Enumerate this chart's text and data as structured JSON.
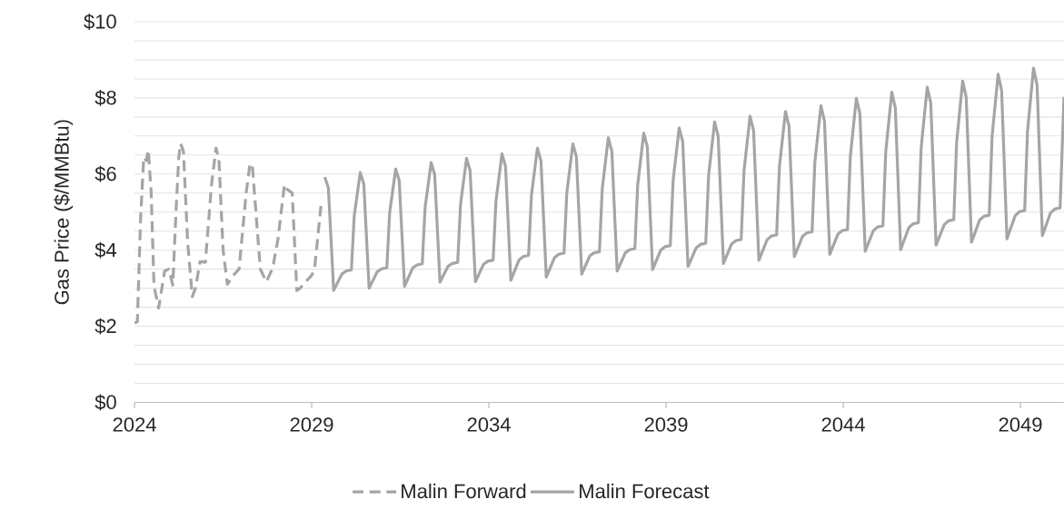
{
  "chart_data": {
    "type": "line",
    "ylabel": "Gas Price ($/MMBtu)",
    "xlim": [
      2024,
      2050.23
    ],
    "ylim": [
      0,
      10
    ],
    "xticks": [
      2024,
      2029,
      2034,
      2039,
      2044,
      2049
    ],
    "yticks": [
      {
        "value": 0,
        "label": "$0"
      },
      {
        "value": 0.5,
        "label": null
      },
      {
        "value": 1,
        "label": null
      },
      {
        "value": 1.5,
        "label": null
      },
      {
        "value": 2,
        "label": "$2"
      },
      {
        "value": 2.5,
        "label": null
      },
      {
        "value": 3,
        "label": null
      },
      {
        "value": 3.5,
        "label": null
      },
      {
        "value": 4,
        "label": "$4"
      },
      {
        "value": 4.5,
        "label": null
      },
      {
        "value": 5,
        "label": null
      },
      {
        "value": 5.5,
        "label": null
      },
      {
        "value": 6,
        "label": "$6"
      },
      {
        "value": 6.5,
        "label": null
      },
      {
        "value": 7,
        "label": null
      },
      {
        "value": 7.5,
        "label": null
      },
      {
        "value": 8,
        "label": "$8"
      },
      {
        "value": 8.5,
        "label": null
      },
      {
        "value": 9,
        "label": null
      },
      {
        "value": 9.5,
        "label": null
      },
      {
        "value": 10,
        "label": "$10"
      }
    ],
    "grid": "y",
    "legend": "bottom",
    "marker": "none",
    "series": [
      {
        "name": "Malin Forward",
        "color": "#a5a5a5",
        "line_style": "dashed",
        "x": [
          2024.0,
          2024.08,
          2024.17,
          2024.26,
          2024.33,
          2024.39,
          2024.47,
          2024.55,
          2024.68,
          2024.85,
          2024.97,
          2025.08,
          2025.17,
          2025.25,
          2025.3,
          2025.38,
          2025.5,
          2025.63,
          2025.72,
          2025.85,
          2026.0,
          2026.17,
          2026.3,
          2026.38,
          2026.5,
          2026.62,
          2026.79,
          2026.95,
          2027.15,
          2027.26,
          2027.33,
          2027.55,
          2027.72,
          2027.9,
          2028.05,
          2028.23,
          2028.3,
          2028.45,
          2028.58,
          2028.65,
          2029.0,
          2029.08,
          2029.26
        ],
        "values": [
          2.08,
          2.12,
          4.8,
          6.44,
          6.35,
          6.63,
          5.5,
          3.05,
          2.48,
          3.45,
          3.5,
          3.08,
          5.0,
          6.45,
          6.8,
          6.6,
          4.2,
          2.78,
          3.0,
          3.7,
          3.68,
          5.7,
          6.68,
          6.4,
          4.0,
          3.1,
          3.34,
          3.5,
          5.5,
          6.28,
          6.16,
          3.5,
          3.17,
          3.53,
          4.3,
          5.72,
          5.6,
          5.5,
          2.94,
          2.98,
          3.34,
          3.5,
          5.16
        ]
      },
      {
        "name": "Malin Forecast",
        "color": "#a5a5a5",
        "line_style": "solid",
        "x": [
          2029.37,
          2029.47,
          2029.62,
          2029.85,
          2029.97,
          2030.12,
          2030.2,
          2030.37,
          2030.47,
          2030.62,
          2030.85,
          2030.97,
          2031.12,
          2031.2,
          2031.37,
          2031.47,
          2031.62,
          2031.85,
          2031.97,
          2032.12,
          2032.2,
          2032.37,
          2032.47,
          2032.62,
          2032.85,
          2032.97,
          2033.12,
          2033.2,
          2033.37,
          2033.47,
          2033.62,
          2033.85,
          2033.97,
          2034.12,
          2034.2,
          2034.37,
          2034.47,
          2034.62,
          2034.85,
          2034.97,
          2035.12,
          2035.2,
          2035.37,
          2035.47,
          2035.62,
          2035.85,
          2035.97,
          2036.12,
          2036.2,
          2036.37,
          2036.47,
          2036.62,
          2036.85,
          2036.97,
          2037.12,
          2037.2,
          2037.37,
          2037.47,
          2037.62,
          2037.85,
          2037.97,
          2038.12,
          2038.2,
          2038.37,
          2038.47,
          2038.62,
          2038.85,
          2038.97,
          2039.12,
          2039.2,
          2039.37,
          2039.47,
          2039.62,
          2039.85,
          2039.97,
          2040.12,
          2040.2,
          2040.37,
          2040.47,
          2040.62,
          2040.85,
          2040.97,
          2041.12,
          2041.2,
          2041.37,
          2041.47,
          2041.62,
          2041.85,
          2041.97,
          2042.12,
          2042.2,
          2042.37,
          2042.47,
          2042.62,
          2042.85,
          2042.97,
          2043.12,
          2043.2,
          2043.37,
          2043.47,
          2043.62,
          2043.85,
          2043.97,
          2044.12,
          2044.2,
          2044.37,
          2044.47,
          2044.62,
          2044.85,
          2044.97,
          2045.12,
          2045.2,
          2045.37,
          2045.47,
          2045.62,
          2045.85,
          2045.97,
          2046.12,
          2046.2,
          2046.37,
          2046.47,
          2046.62,
          2046.85,
          2046.97,
          2047.12,
          2047.2,
          2047.37,
          2047.47,
          2047.62,
          2047.85,
          2047.97,
          2048.12,
          2048.2,
          2048.37,
          2048.47,
          2048.62,
          2048.85,
          2048.97,
          2049.12,
          2049.2,
          2049.37,
          2049.47,
          2049.62,
          2049.85,
          2049.97,
          2050.12,
          2050.23
        ],
        "values": [
          5.92,
          5.64,
          2.94,
          3.37,
          3.45,
          3.48,
          4.9,
          6.04,
          5.74,
          3.0,
          3.43,
          3.51,
          3.54,
          4.98,
          6.13,
          5.82,
          3.05,
          3.53,
          3.61,
          3.64,
          5.12,
          6.3,
          5.99,
          3.16,
          3.58,
          3.65,
          3.68,
          5.2,
          6.41,
          6.09,
          3.17,
          3.63,
          3.71,
          3.74,
          5.29,
          6.53,
          6.2,
          3.21,
          3.74,
          3.83,
          3.86,
          5.43,
          6.68,
          6.35,
          3.29,
          3.8,
          3.89,
          3.92,
          5.51,
          6.79,
          6.45,
          3.37,
          3.85,
          3.93,
          3.96,
          5.62,
          6.95,
          6.6,
          3.45,
          3.93,
          4.01,
          4.04,
          5.72,
          7.07,
          6.72,
          3.49,
          4.0,
          4.09,
          4.12,
          5.84,
          7.21,
          6.85,
          3.57,
          4.06,
          4.15,
          4.18,
          5.95,
          7.37,
          7.0,
          3.65,
          4.16,
          4.25,
          4.28,
          6.08,
          7.52,
          7.14,
          3.73,
          4.27,
          4.37,
          4.4,
          6.2,
          7.64,
          7.26,
          3.83,
          4.36,
          4.45,
          4.48,
          6.32,
          7.79,
          7.4,
          3.89,
          4.42,
          4.51,
          4.54,
          6.46,
          7.99,
          7.59,
          3.97,
          4.51,
          4.61,
          4.64,
          6.59,
          8.15,
          7.74,
          4.01,
          4.59,
          4.69,
          4.72,
          6.7,
          8.28,
          7.87,
          4.13,
          4.67,
          4.77,
          4.8,
          6.83,
          8.44,
          8.02,
          4.21,
          4.79,
          4.89,
          4.92,
          6.98,
          8.62,
          8.19,
          4.3,
          4.9,
          5.01,
          5.04,
          7.12,
          8.78,
          8.34,
          4.38,
          4.98,
          5.08,
          5.11,
          8.03
        ]
      }
    ]
  }
}
